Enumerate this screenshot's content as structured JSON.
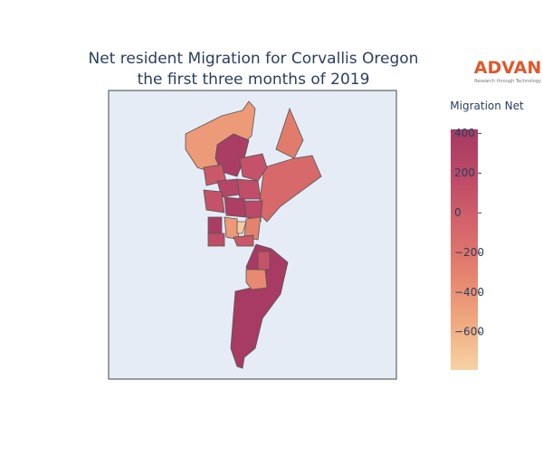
{
  "chart_data": {
    "type": "choropleth",
    "title": [
      "Net resident Migration for Corvallis Oregon",
      "the first three months of 2019"
    ],
    "colorbar_title": "Migration Net",
    "zlim": [
      -790,
      420
    ],
    "zticks": [
      400,
      200,
      0,
      {
        "value": -200,
        "label": "−200"
      },
      {
        "value": -400,
        "label": "−400"
      },
      {
        "value": -600,
        "label": "−600"
      }
    ],
    "colorscale": [
      "#f6d3a4",
      "#f0a97f",
      "#e5836e",
      "#d4646a",
      "#bd4a68",
      "#a63a63"
    ],
    "values": [
      -450,
      380,
      -250,
      -100,
      100,
      50,
      250,
      150,
      100,
      350,
      200,
      380,
      150,
      -450,
      -750,
      -300,
      50,
      400,
      -350,
      100
    ],
    "land_color": "#e5ecf6"
  },
  "logo": {
    "name": "ADVAN",
    "tagline": "Research through Technology"
  }
}
